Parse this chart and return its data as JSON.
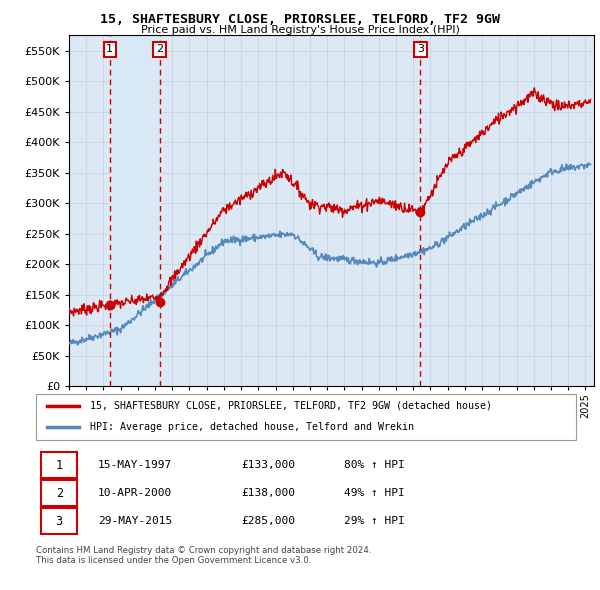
{
  "title": "15, SHAFTESBURY CLOSE, PRIORSLEE, TELFORD, TF2 9GW",
  "subtitle": "Price paid vs. HM Land Registry's House Price Index (HPI)",
  "ylim": [
    0,
    575000
  ],
  "yticks": [
    0,
    50000,
    100000,
    150000,
    200000,
    250000,
    300000,
    350000,
    400000,
    450000,
    500000,
    550000
  ],
  "xlim_start": 1995.0,
  "xlim_end": 2025.5,
  "sale_dates": [
    1997.37,
    2000.27,
    2015.41
  ],
  "sale_prices": [
    133000,
    138000,
    285000
  ],
  "sale_labels": [
    "1",
    "2",
    "3"
  ],
  "property_color": "#cc0000",
  "hpi_color": "#5588bb",
  "shaded_color": "#d8e8f5",
  "background_color": "#dce9f5",
  "grid_color": "#c8d8e8",
  "legend_property": "15, SHAFTESBURY CLOSE, PRIORSLEE, TELFORD, TF2 9GW (detached house)",
  "legend_hpi": "HPI: Average price, detached house, Telford and Wrekin",
  "table_entries": [
    {
      "label": "1",
      "date": "15-MAY-1997",
      "price": "£133,000",
      "change": "80% ↑ HPI"
    },
    {
      "label": "2",
      "date": "10-APR-2000",
      "price": "£138,000",
      "change": "49% ↑ HPI"
    },
    {
      "label": "3",
      "date": "29-MAY-2015",
      "price": "£285,000",
      "change": "29% ↑ HPI"
    }
  ],
  "footnote": "Contains HM Land Registry data © Crown copyright and database right 2024.\nThis data is licensed under the Open Government Licence v3.0."
}
